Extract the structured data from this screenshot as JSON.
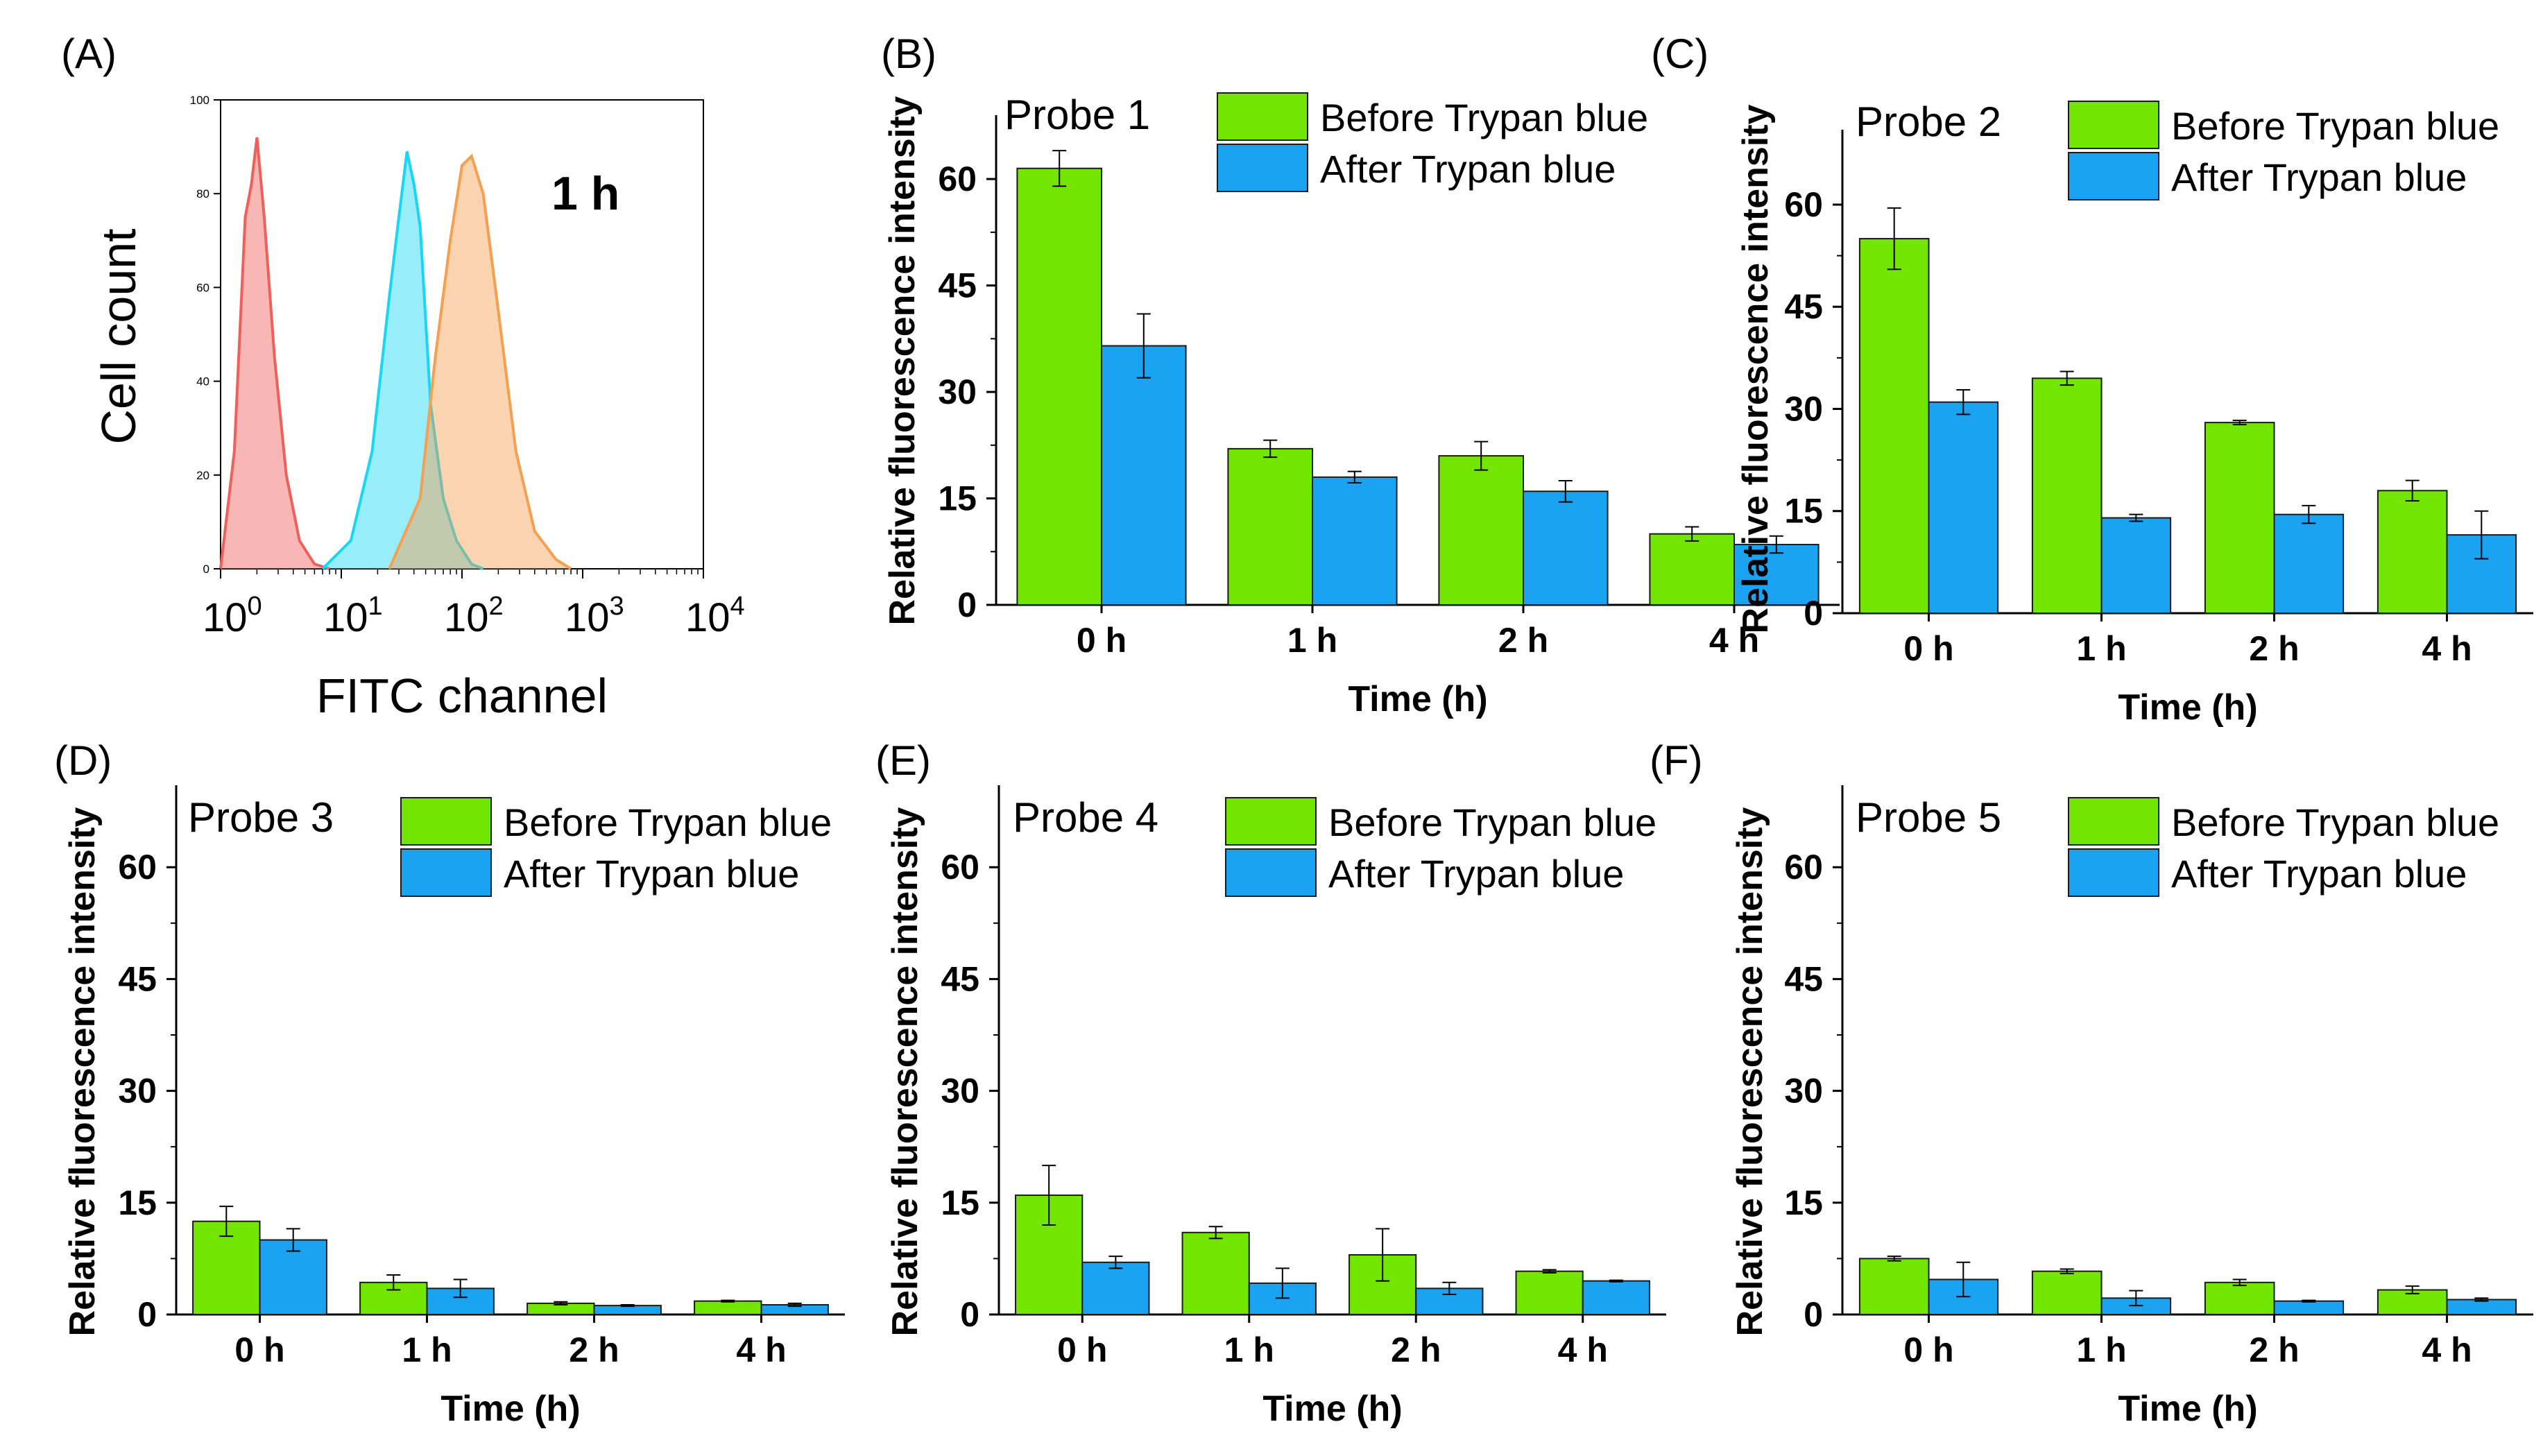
{
  "flow_panel": {
    "label": "(A)",
    "time_label": "1 h",
    "x_axis_title": "FITC channel",
    "y_axis_title": "Cell count",
    "x_ticks": [
      {
        "base": "10",
        "exp": "0"
      },
      {
        "base": "10",
        "exp": "1"
      },
      {
        "base": "10",
        "exp": "2"
      },
      {
        "base": "10",
        "exp": "3"
      },
      {
        "base": "10",
        "exp": "4"
      }
    ],
    "y_ticks": [
      "0",
      "20",
      "40",
      "60",
      "80",
      "100"
    ],
    "colors": {
      "red": "#f0605a",
      "cyan": "#19d6f5",
      "orange": "#f5a050"
    }
  },
  "legend": {
    "before": "Before Trypan blue",
    "after": "After Trypan blue"
  },
  "colors": {
    "before": "#73e600",
    "after": "#1aa3f0"
  },
  "chart_data": [
    {
      "type": "histogram",
      "panel": "(A)",
      "title": "1 h",
      "xlabel": "FITC channel",
      "ylabel": "Cell count",
      "xscale": "log",
      "xlim": [
        1,
        10000
      ],
      "ylim": [
        0,
        100
      ],
      "series": [
        {
          "name": "red",
          "color": "#f0605a",
          "x": [
            1.0,
            1.3,
            1.6,
            1.8,
            2.0,
            2.3,
            2.8,
            3.5,
            4.5,
            6.0,
            8.0
          ],
          "y": [
            0,
            25,
            75,
            82,
            92,
            75,
            45,
            20,
            6,
            1,
            0
          ]
        },
        {
          "name": "cyan",
          "color": "#19d6f5",
          "x": [
            7,
            12,
            18,
            25,
            30,
            35,
            40,
            45,
            55,
            70,
            90,
            120,
            150
          ],
          "y": [
            0,
            6,
            25,
            58,
            75,
            89,
            82,
            73,
            35,
            15,
            6,
            1,
            0
          ]
        },
        {
          "name": "orange",
          "color": "#f5a050",
          "x": [
            25,
            45,
            60,
            80,
            100,
            120,
            150,
            200,
            280,
            400,
            600,
            800
          ],
          "y": [
            0,
            15,
            45,
            70,
            86,
            88,
            80,
            55,
            25,
            8,
            2,
            0
          ]
        }
      ]
    },
    {
      "type": "bar",
      "panel": "(B)",
      "title": "Probe 1",
      "categories": [
        "0 h",
        "1 h",
        "2 h",
        "4 h"
      ],
      "xlabel": "Time (h)",
      "ylabel": "Relative fluorescence intensity",
      "ylim": [
        0,
        69
      ],
      "yticks": [
        0,
        15,
        30,
        45,
        60
      ],
      "series": [
        {
          "name": "Before Trypan blue",
          "values": [
            61.5,
            22,
            21,
            10
          ],
          "errors": [
            2.5,
            1.2,
            2,
            1
          ]
        },
        {
          "name": "After Trypan blue",
          "values": [
            36.5,
            18,
            16,
            8.5
          ],
          "errors": [
            4.5,
            0.8,
            1.5,
            1.2
          ]
        }
      ]
    },
    {
      "type": "bar",
      "panel": "(C)",
      "title": "Probe 2",
      "categories": [
        "0 h",
        "1 h",
        "2 h",
        "4 h"
      ],
      "xlabel": "Time (h)",
      "ylabel": "Relative fluorescence intensity",
      "ylim": [
        0,
        71
      ],
      "yticks": [
        0,
        15,
        30,
        45,
        60
      ],
      "series": [
        {
          "name": "Before Trypan blue",
          "values": [
            55,
            34.5,
            28,
            18
          ],
          "errors": [
            4.5,
            1,
            0.3,
            1.5
          ]
        },
        {
          "name": "After Trypan blue",
          "values": [
            31,
            14,
            14.5,
            11.5
          ],
          "errors": [
            1.8,
            0.5,
            1.3,
            3.5
          ]
        }
      ]
    },
    {
      "type": "bar",
      "panel": "(D)",
      "title": "Probe 3",
      "categories": [
        "0 h",
        "1 h",
        "2 h",
        "4 h"
      ],
      "xlabel": "Time (h)",
      "ylabel": "Relative fluorescence intensity",
      "ylim": [
        0,
        71
      ],
      "yticks": [
        0,
        15,
        30,
        45,
        60
      ],
      "series": [
        {
          "name": "Before Trypan blue",
          "values": [
            12.5,
            4.3,
            1.5,
            1.8
          ],
          "errors": [
            2,
            1,
            0.2,
            0.1
          ]
        },
        {
          "name": "After Trypan blue",
          "values": [
            10,
            3.5,
            1.2,
            1.3
          ],
          "errors": [
            1.5,
            1.2,
            0.1,
            0.2
          ]
        }
      ]
    },
    {
      "type": "bar",
      "panel": "(E)",
      "title": "Probe 4",
      "categories": [
        "0 h",
        "1 h",
        "2 h",
        "4 h"
      ],
      "xlabel": "Time (h)",
      "ylabel": "Relative fluorescence intensity",
      "ylim": [
        0,
        71
      ],
      "yticks": [
        0,
        15,
        30,
        45,
        60
      ],
      "series": [
        {
          "name": "Before Trypan blue",
          "values": [
            16,
            11,
            8,
            5.8
          ],
          "errors": [
            4,
            0.8,
            3.5,
            0.2
          ]
        },
        {
          "name": "After Trypan blue",
          "values": [
            7,
            4.2,
            3.5,
            4.5
          ],
          "errors": [
            0.8,
            2,
            0.8,
            0.1
          ]
        }
      ]
    },
    {
      "type": "bar",
      "panel": "(F)",
      "title": "Probe 5",
      "categories": [
        "0 h",
        "1 h",
        "2 h",
        "4 h"
      ],
      "xlabel": "Time (h)",
      "ylabel": "Relative fluorescence intensity",
      "ylim": [
        0,
        71
      ],
      "yticks": [
        0,
        15,
        30,
        45,
        60
      ],
      "series": [
        {
          "name": "Before Trypan blue",
          "values": [
            7.5,
            5.8,
            4.3,
            3.3
          ],
          "errors": [
            0.3,
            0.3,
            0.4,
            0.5
          ]
        },
        {
          "name": "After Trypan blue",
          "values": [
            4.7,
            2.2,
            1.8,
            2
          ],
          "errors": [
            2.3,
            1,
            0.1,
            0.2
          ]
        }
      ]
    }
  ]
}
